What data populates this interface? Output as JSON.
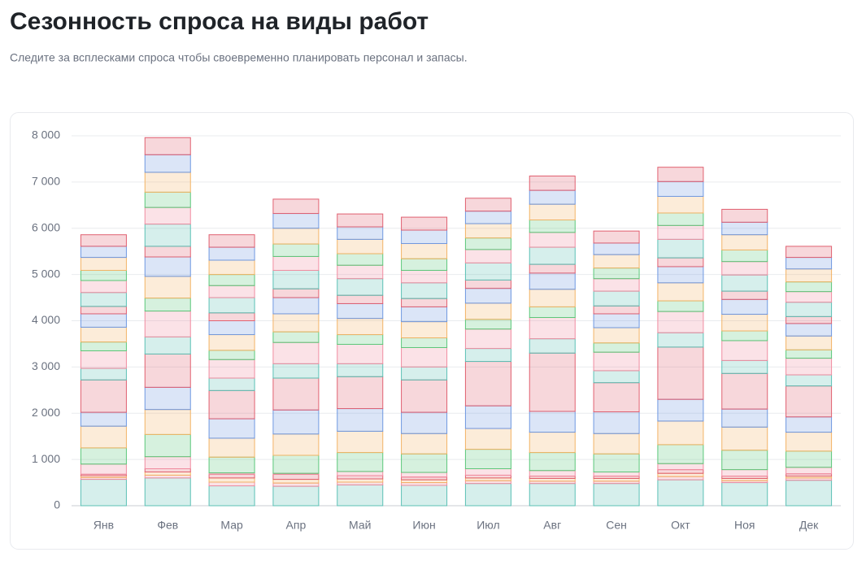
{
  "chart_data": {
    "type": "stacked-bar",
    "title": "Сезонность спроса на виды работ",
    "subtitle": "Следите за всплесками спроса чтобы своевременно планировать персонал и запасы.",
    "categories": [
      "Янв",
      "Фев",
      "Мар",
      "Апр",
      "Май",
      "Июн",
      "Июл",
      "Авг",
      "Сен",
      "Окт",
      "Ноя",
      "Дек"
    ],
    "ylim": [
      0,
      8000
    ],
    "yticks": [
      0,
      {
        "value": 1000,
        "label": "1 000"
      },
      {
        "value": 2000,
        "label": "2 000"
      },
      {
        "value": 3000,
        "label": "3 000"
      },
      {
        "value": 4000,
        "label": "4 000"
      },
      {
        "value": 5000,
        "label": "5 000"
      },
      {
        "value": 6000,
        "label": "6 000"
      },
      {
        "value": 7000,
        "label": "7 000"
      },
      {
        "value": 8000,
        "label": "8 000"
      }
    ],
    "grid": true,
    "series": [
      {
        "color": "#5cc0b5",
        "values": [
          570,
          600,
          430,
          420,
          450,
          440,
          480,
          480,
          480,
          560,
          500,
          550
        ]
      },
      {
        "color": "#f08ca0",
        "values": [
          40,
          60,
          80,
          70,
          60,
          60,
          60,
          50,
          50,
          70,
          40,
          50
        ]
      },
      {
        "color": "#f2b366",
        "values": [
          40,
          70,
          90,
          80,
          70,
          60,
          60,
          60,
          60,
          70,
          50,
          40
        ]
      },
      {
        "color": "#e06070",
        "values": [
          30,
          70,
          80,
          110,
          70,
          60,
          60,
          50,
          50,
          80,
          50,
          50
        ]
      },
      {
        "color": "#f08ca0",
        "values": [
          220,
          260,
          30,
          20,
          90,
          100,
          140,
          120,
          90,
          130,
          140,
          140
        ]
      },
      {
        "color": "#5cc77a",
        "values": [
          350,
          480,
          340,
          390,
          410,
          400,
          420,
          390,
          390,
          410,
          420,
          350
        ]
      },
      {
        "color": "#f2b366",
        "values": [
          470,
          540,
          410,
          460,
          460,
          440,
          450,
          440,
          440,
          510,
          500,
          410
        ]
      },
      {
        "color": "#6f98e0",
        "values": [
          300,
          480,
          420,
          520,
          490,
          460,
          490,
          450,
          470,
          470,
          390,
          330
        ]
      },
      {
        "color": "#e06070",
        "values": [
          700,
          720,
          610,
          690,
          690,
          700,
          960,
          1260,
          630,
          1130,
          770,
          670
        ]
      },
      {
        "color": "#5cc0b5",
        "values": [
          250,
          370,
          270,
          310,
          280,
          280,
          280,
          310,
          260,
          310,
          280,
          240
        ]
      },
      {
        "color": "#f08ca0",
        "values": [
          380,
          560,
          400,
          460,
          420,
          420,
          420,
          460,
          400,
          460,
          430,
          360
        ]
      },
      {
        "color": "#5cc77a",
        "values": [
          190,
          280,
          200,
          230,
          210,
          210,
          210,
          230,
          200,
          230,
          210,
          180
        ]
      },
      {
        "color": "#f2b366",
        "values": [
          320,
          470,
          340,
          390,
          350,
          350,
          350,
          380,
          330,
          390,
          360,
          300
        ]
      },
      {
        "color": "#6f98e0",
        "values": [
          290,
          420,
          300,
          350,
          320,
          320,
          320,
          350,
          300,
          350,
          320,
          270
        ]
      },
      {
        "color": "#e06070",
        "values": [
          160,
          230,
          170,
          190,
          180,
          180,
          180,
          190,
          170,
          190,
          180,
          150
        ]
      },
      {
        "color": "#5cc0b5",
        "values": [
          300,
          480,
          330,
          400,
          360,
          340,
          370,
          370,
          320,
          400,
          350,
          310
        ]
      },
      {
        "color": "#f08ca0",
        "values": [
          260,
          360,
          260,
          300,
          290,
          270,
          290,
          320,
          270,
          300,
          290,
          230
        ]
      },
      {
        "color": "#5cc77a",
        "values": [
          220,
          330,
          240,
          270,
          250,
          250,
          250,
          270,
          230,
          270,
          250,
          210
        ]
      },
      {
        "color": "#f2b366",
        "values": [
          280,
          430,
          310,
          340,
          310,
          330,
          310,
          340,
          290,
          360,
          330,
          280
        ]
      },
      {
        "color": "#6f98e0",
        "values": [
          240,
          380,
          280,
          320,
          270,
          290,
          270,
          300,
          250,
          320,
          270,
          250
        ]
      },
      {
        "color": "#e06070",
        "values": [
          250,
          370,
          270,
          310,
          280,
          280,
          280,
          310,
          260,
          310,
          280,
          240
        ]
      }
    ]
  }
}
